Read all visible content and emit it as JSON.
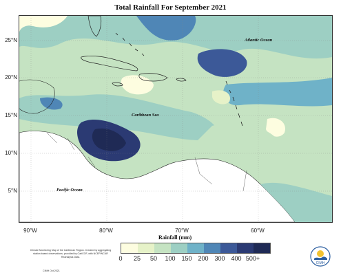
{
  "title": "Total Rainfall For September 2021",
  "oceans": {
    "atlantic": "Atlantic Ocean",
    "caribbean": "Caribbean Sea",
    "pacific": "Pacific Ocean"
  },
  "latitude_labels": [
    "25°N",
    "20°N",
    "15°N",
    "10°N",
    "5°N"
  ],
  "longitude_labels": [
    "90°W",
    "80°W",
    "70°W",
    "60°W"
  ],
  "legend": {
    "title": "Rainfall (mm)",
    "ticks": [
      "0",
      "25",
      "50",
      "100",
      "150",
      "200",
      "300",
      "400",
      "500+"
    ],
    "colors": [
      "#fdfde0",
      "#e6f2c8",
      "#c5e3c2",
      "#9dcfc3",
      "#6fb2c8",
      "#4f86b6",
      "#3c5998",
      "#2b3a73",
      "#1f2a55"
    ]
  },
  "footnote": "Climate Monitoring Map of the Caribbean Region. Created by aggregating station based observations, provided by CariCOF, with NCEP/NCAR Reanalysis Data.",
  "credit": "CIMH Oct 2021",
  "logo": {
    "icon": "cimh-logo-icon",
    "text": "CIMH"
  }
}
